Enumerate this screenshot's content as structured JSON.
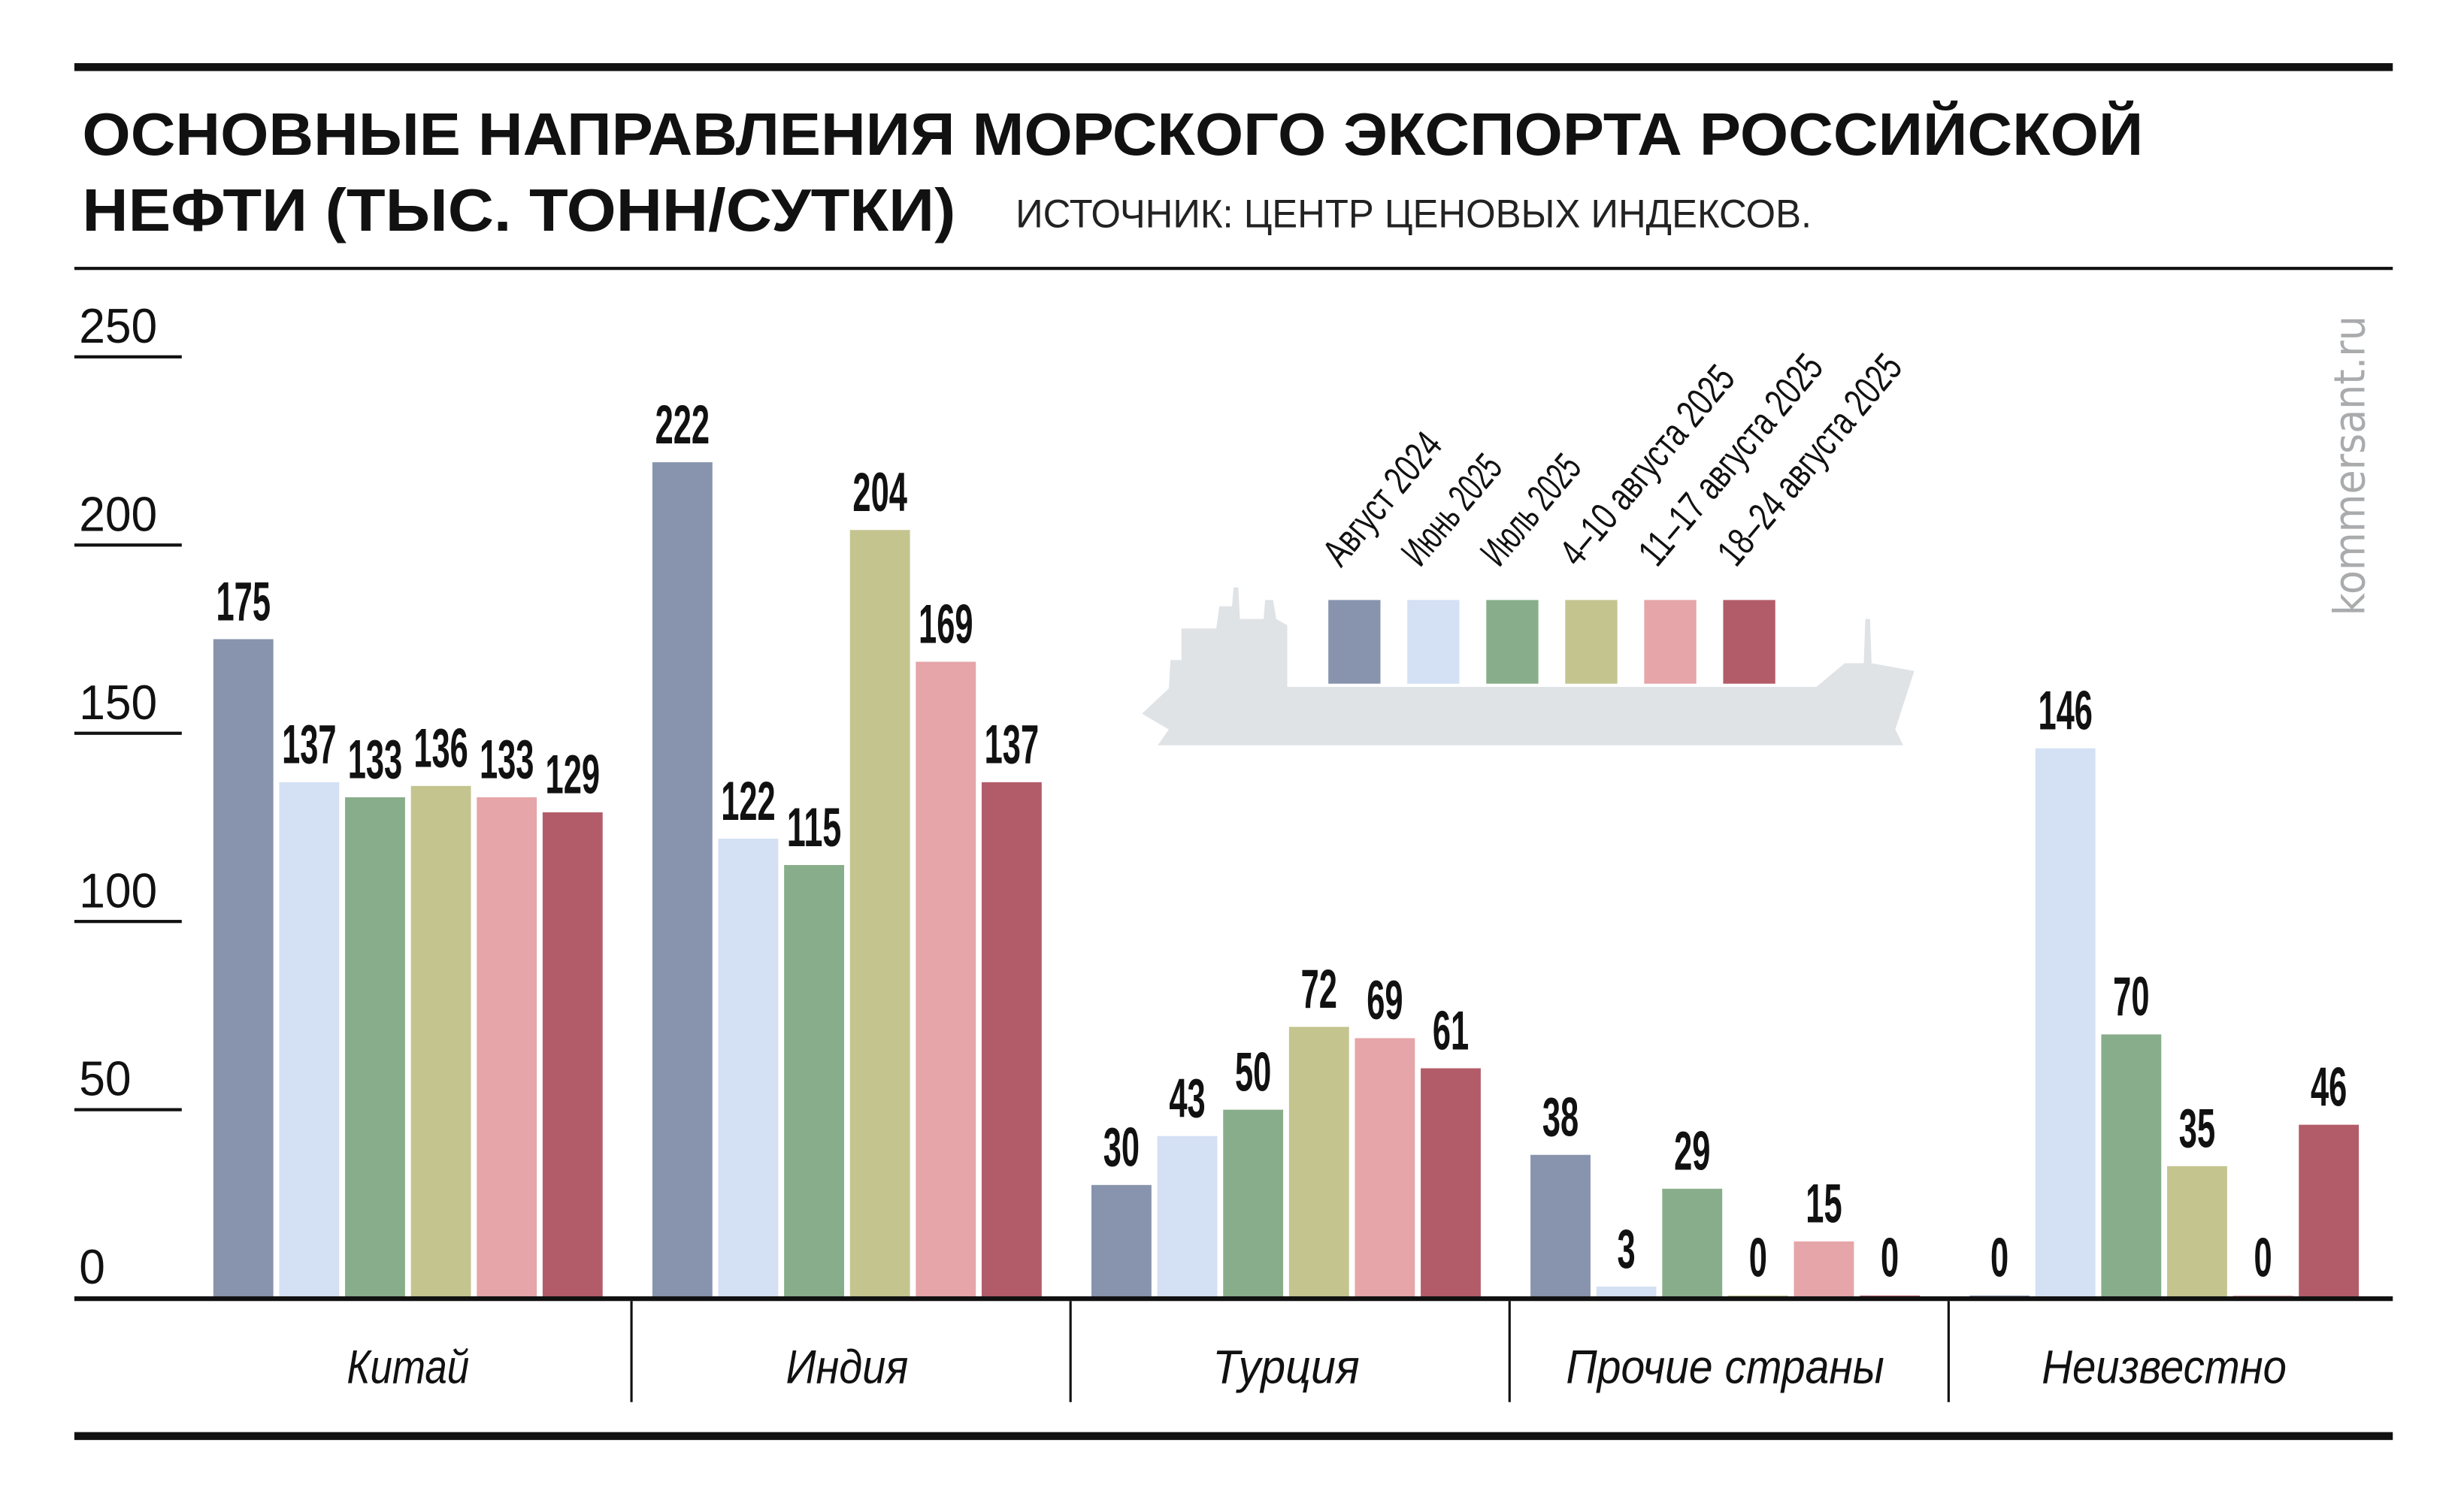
{
  "header": {
    "title_line1": "ОСНОВНЫЕ НАПРАВЛЕНИЯ МОРСКОГО ЭКСПОРТА РОССИЙСКОЙ",
    "title_line2": "НЕФТИ (ТЫС. ТОНН/СУТКИ)",
    "source": "ИСТОЧНИК: ЦЕНТР ЦЕНОВЫХ ИНДЕКСОВ."
  },
  "brand": "kommersant.ru",
  "chart_data": {
    "type": "bar",
    "title": "ОСНОВНЫЕ НАПРАВЛЕНИЯ МОРСКОГО ЭКСПОРТА РОССИЙСКОЙ НЕФТИ (ТЫС. ТОНН/СУТКИ)",
    "xlabel": "",
    "ylabel": "",
    "ylim": [
      0,
      250
    ],
    "yticks": [
      "0",
      "50",
      "100",
      "150",
      "200",
      "250"
    ],
    "ytick_values": [
      0,
      50,
      100,
      150,
      200,
      250
    ],
    "grid": false,
    "legend_position": "top-center",
    "categories": [
      "Китай",
      "Индия",
      "Турция",
      "Прочие страны",
      "Неизвестно"
    ],
    "series": [
      {
        "name": "Август 2024",
        "color": "#8894ad",
        "values": [
          175,
          222,
          30,
          38,
          0
        ]
      },
      {
        "name": "Июнь 2025",
        "color": "#d4e0f4",
        "values": [
          137,
          122,
          43,
          3,
          146
        ]
      },
      {
        "name": "Июль 2025",
        "color": "#88ad8a",
        "values": [
          133,
          115,
          50,
          29,
          70
        ]
      },
      {
        "name": "4–10 августа 2025",
        "color": "#c4c48f",
        "values": [
          136,
          204,
          72,
          0,
          35
        ]
      },
      {
        "name": "11–17 августа 2025",
        "color": "#e5a5a9",
        "values": [
          133,
          169,
          69,
          15,
          0
        ]
      },
      {
        "name": "18–24 августа 2025",
        "color": "#b35c69",
        "values": [
          129,
          137,
          61,
          0,
          46
        ]
      }
    ]
  }
}
